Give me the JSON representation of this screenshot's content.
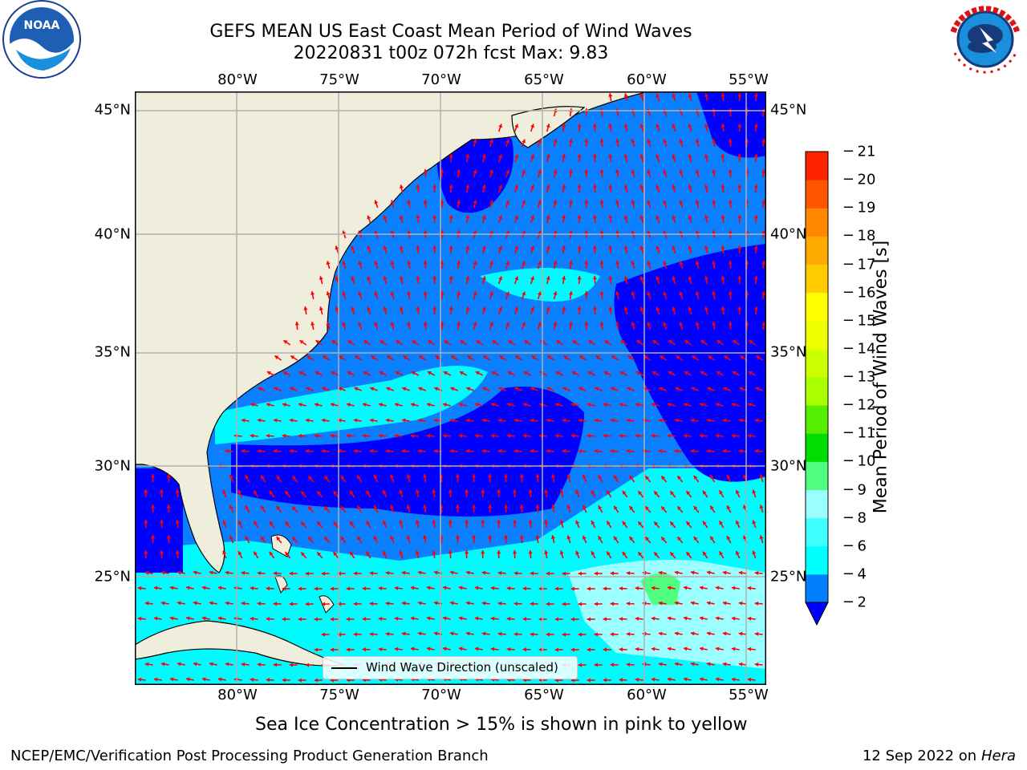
{
  "title": {
    "line1": "GEFS MEAN US East Coast Mean Period of Wind Waves",
    "line2": "20220831 t00z 072h fcst   Max: 9.83"
  },
  "logos": {
    "left": "NOAA",
    "right": "NATIONAL WEATHER SERVICE"
  },
  "map": {
    "projection": "Plate Carree",
    "lon_range": [
      -85,
      -54
    ],
    "lat_range": [
      20.5,
      45.8
    ],
    "lon_ticks": [
      "80°W",
      "75°W",
      "70°W",
      "65°W",
      "60°W",
      "55°W"
    ],
    "lat_ticks": [
      "45°N",
      "40°N",
      "35°N",
      "30°N",
      "25°N"
    ],
    "grid": true,
    "land_color": "#efeedc",
    "arrow_color": "#ff0000",
    "legend_label": "Wind Wave Direction (unscaled)"
  },
  "colorbar": {
    "label": "Mean Period of Wind Waves [s]",
    "ticks": [
      "2",
      "4",
      "6",
      "8",
      "9",
      "10",
      "11",
      "12",
      "13",
      "14",
      "15",
      "16",
      "17",
      "18",
      "19",
      "20",
      "21"
    ],
    "colors": [
      "#0000ff",
      "#0080ff",
      "#00ffff",
      "#40ffff",
      "#9cffff",
      "#50ff80",
      "#00dd00",
      "#55ee00",
      "#aaff00",
      "#ccff00",
      "#eeff00",
      "#ffff00",
      "#ffcc00",
      "#ffaa00",
      "#ff8800",
      "#ff5500",
      "#ff2200",
      "#ff0000"
    ]
  },
  "note": "Sea Ice Concentration > 15% is shown in pink to yellow",
  "footer": {
    "left": "NCEP/EMC/Verification Post Processing Product Generation Branch",
    "date": "12 Sep 2022 on",
    "machine": "Hera"
  }
}
